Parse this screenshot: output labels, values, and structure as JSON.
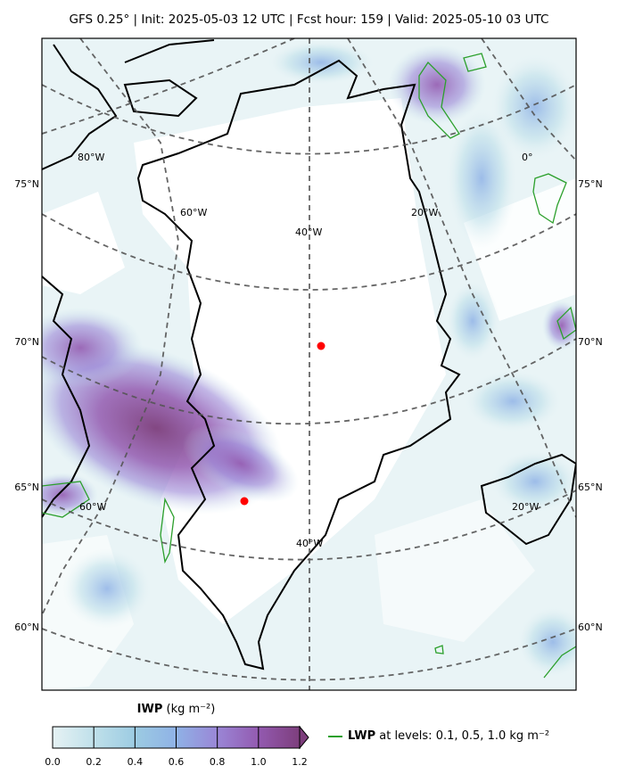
{
  "title": "GFS 0.25° | Init: 2025-05-03 12 UTC | Fcst hour: 159 | Valid: 2025-05-10 03 UTC",
  "lat_labels_left": [
    "75°N",
    "70°N",
    "65°N",
    "60°N"
  ],
  "lat_labels_right": [
    "75°N",
    "70°N",
    "65°N",
    "60°N"
  ],
  "lon_labels": [
    {
      "text": "80°W"
    },
    {
      "text": "60°W"
    },
    {
      "text": "40°W"
    },
    {
      "text": "20°W"
    },
    {
      "text": "0°"
    },
    {
      "text": "60°W"
    },
    {
      "text": "40°W"
    },
    {
      "text": "20°W"
    }
  ],
  "colorbar": {
    "variable": "IWP",
    "units": "(kg m⁻²)",
    "ticks": [
      "0.0",
      "0.2",
      "0.4",
      "0.6",
      "0.8",
      "1.0",
      "1.2"
    ],
    "colors": [
      "#e6f2f4",
      "#bfe0ea",
      "#9ccbe2",
      "#8fb2e6",
      "#9a86d6",
      "#935ab0",
      "#7d3e7c"
    ]
  },
  "legend": {
    "variable": "LWP",
    "text": "at levels: 0.1, 0.5, 1.0  kg m⁻²",
    "color": "#2ca02c"
  },
  "markers_color": "#ff0000"
}
